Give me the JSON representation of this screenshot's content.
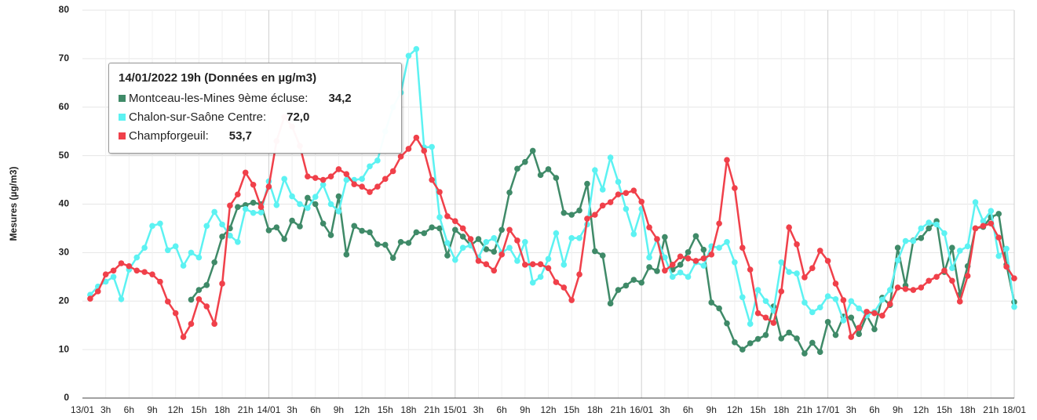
{
  "chart_data": {
    "type": "line",
    "y_label": "Mesures (µg/m3)",
    "categories": [
      "13/01",
      null,
      null,
      "3h",
      null,
      null,
      "6h",
      null,
      null,
      "9h",
      null,
      null,
      "12h",
      null,
      null,
      "15h",
      null,
      null,
      "18h",
      null,
      null,
      "21h",
      null,
      null,
      "14/01",
      null,
      null,
      "3h",
      null,
      null,
      "6h",
      null,
      null,
      "9h",
      null,
      null,
      "12h",
      null,
      null,
      "15h",
      null,
      null,
      "18h",
      null,
      null,
      "21h",
      null,
      null,
      "15/01",
      null,
      null,
      "3h",
      null,
      null,
      "6h",
      null,
      null,
      "9h",
      null,
      null,
      "12h",
      null,
      null,
      "15h",
      null,
      null,
      "18h",
      null,
      null,
      "21h",
      null,
      null,
      "16/01",
      null,
      null,
      "3h",
      null,
      null,
      "6h",
      null,
      null,
      "9h",
      null,
      null,
      "12h",
      null,
      null,
      "15h",
      null,
      null,
      "18h",
      null,
      null,
      "21h",
      null,
      null,
      "17/01",
      null,
      null,
      "3h",
      null,
      null,
      "6h",
      null,
      null,
      "9h",
      null,
      null,
      "12h",
      null,
      null,
      "15h",
      null,
      null,
      "18h",
      null,
      null,
      "21h",
      null,
      null,
      "18/01"
    ],
    "series": [
      {
        "name": "Montceau-les-Mines 9ème écluse",
        "color": "#3f8a68",
        "values": [
          null,
          null,
          null,
          null,
          null,
          null,
          null,
          null,
          null,
          null,
          null,
          null,
          null,
          null,
          20.3,
          22.3,
          23.3,
          28,
          33.3,
          35,
          39.4,
          39.8,
          40.3,
          40,
          34.6,
          35.2,
          32.8,
          36.6,
          35.4,
          41.3,
          40,
          36,
          33.6,
          41.6,
          29.6,
          35.5,
          34.5,
          34.2,
          31.7,
          31.6,
          28.9,
          32.2,
          32,
          34.2,
          34,
          35.2,
          35,
          29.4,
          34.7,
          33.3,
          31.5,
          32.8,
          30.7,
          30.2,
          34.7,
          42.4,
          47.3,
          48.7,
          51,
          46,
          47.2,
          45.4,
          38.2,
          37.8,
          38.7,
          44.2,
          30.3,
          29.4,
          19.5,
          22.3,
          23.2,
          24.4,
          23.8,
          27,
          26.2,
          33.2,
          26.5,
          27.5,
          30.1,
          33.4,
          30.6,
          19.7,
          18.5,
          15.4,
          11.5,
          10,
          11.3,
          12.2,
          13,
          18.9,
          12.3,
          13.5,
          12.3,
          9.2,
          11.4,
          9.5,
          15.7,
          13,
          16.8,
          16.6,
          13.2,
          17,
          14.2,
          20.7,
          19.2,
          31,
          23.2,
          32.5,
          33,
          35,
          36.5,
          26,
          31,
          21.3,
          27.2,
          35,
          35.3,
          37.3,
          38,
          27.5,
          19.8
        ]
      },
      {
        "name": "Chalon-sur-Saône Centre",
        "color": "#5cf2f2",
        "values": [
          null,
          21.3,
          23,
          24,
          25,
          20.4,
          26.5,
          29,
          31,
          35.5,
          36,
          30.5,
          31.3,
          27.3,
          30,
          29,
          35.5,
          38.4,
          35.8,
          33.5,
          32.2,
          39,
          38.2,
          38.3,
          44.7,
          39.8,
          45.2,
          41.6,
          40,
          39.2,
          41.5,
          44,
          40,
          38.5,
          45,
          45,
          45.2,
          47.8,
          49,
          55,
          60,
          63,
          70.6,
          72,
          51.7,
          51.8,
          37.3,
          32,
          28.5,
          31,
          31.5,
          29,
          32.2,
          33,
          30,
          31,
          28.3,
          32.2,
          23.8,
          25,
          28.7,
          34,
          27.5,
          33,
          33,
          35.8,
          47,
          43,
          49.6,
          44.6,
          39,
          33.8,
          39,
          29,
          32.7,
          29,
          25,
          25.9,
          25,
          28,
          27.3,
          31.3,
          31,
          32.2,
          28,
          20.8,
          15.3,
          22.3,
          20,
          18,
          28,
          26,
          25.7,
          19.7,
          17.7,
          18.7,
          21,
          20.4,
          16,
          20,
          18.5,
          17,
          17.8,
          20.3,
          22.3,
          28.4,
          32.4,
          32.4,
          35,
          36.2,
          35.8,
          34,
          26.8,
          30.4,
          31.3,
          40.4,
          36.5,
          38.6,
          29.3,
          30.8,
          18.8
        ]
      },
      {
        "name": "Champforgeuil",
        "color": "#f0404a",
        "values": [
          null,
          20.5,
          22,
          25.5,
          26.3,
          27.8,
          27.2,
          26.3,
          26,
          25.5,
          24,
          19.9,
          17.5,
          12.6,
          15.3,
          20.4,
          18.9,
          15.3,
          23.6,
          39.7,
          42,
          46.5,
          44,
          39.4,
          43.6,
          53,
          58,
          56,
          52,
          45.7,
          45.4,
          45,
          45.7,
          47.2,
          46.2,
          44.1,
          43.6,
          42.5,
          43.6,
          45.2,
          46.8,
          49.8,
          51.4,
          53.7,
          51,
          45,
          42.5,
          37.5,
          36.5,
          35,
          32.8,
          28.3,
          27.6,
          26.3,
          29.6,
          34.7,
          32.5,
          27.5,
          27.6,
          27.6,
          26.8,
          23.9,
          22.8,
          20.2,
          25.5,
          37,
          37.8,
          39.7,
          40.4,
          42,
          42.3,
          42.8,
          40.5,
          35.2,
          32.8,
          26.3,
          27.5,
          29.2,
          28.8,
          28.3,
          28.8,
          29.6,
          36,
          49.1,
          43.3,
          31,
          26.5,
          17.5,
          16.6,
          15.5,
          22,
          35.2,
          31.7,
          24.9,
          26.8,
          30.4,
          28.3,
          23.6,
          20.2,
          12.6,
          14.5,
          17.8,
          17.5,
          17,
          19.4,
          22.8,
          22.5,
          22.3,
          22.8,
          24.2,
          25,
          26.3,
          24.2,
          19.9,
          25.2,
          35,
          35.5,
          36,
          33.1,
          27.1,
          24.7
        ]
      }
    ],
    "ylim": [
      0,
      80
    ],
    "yticks": [
      0,
      10,
      20,
      30,
      40,
      50,
      60,
      70,
      80
    ],
    "grid": true,
    "tooltip": {
      "title": "14/01/2022 19h (Données en µg/m3)",
      "value_labels": [
        "34,2",
        "72,0",
        "53,7"
      ]
    }
  }
}
